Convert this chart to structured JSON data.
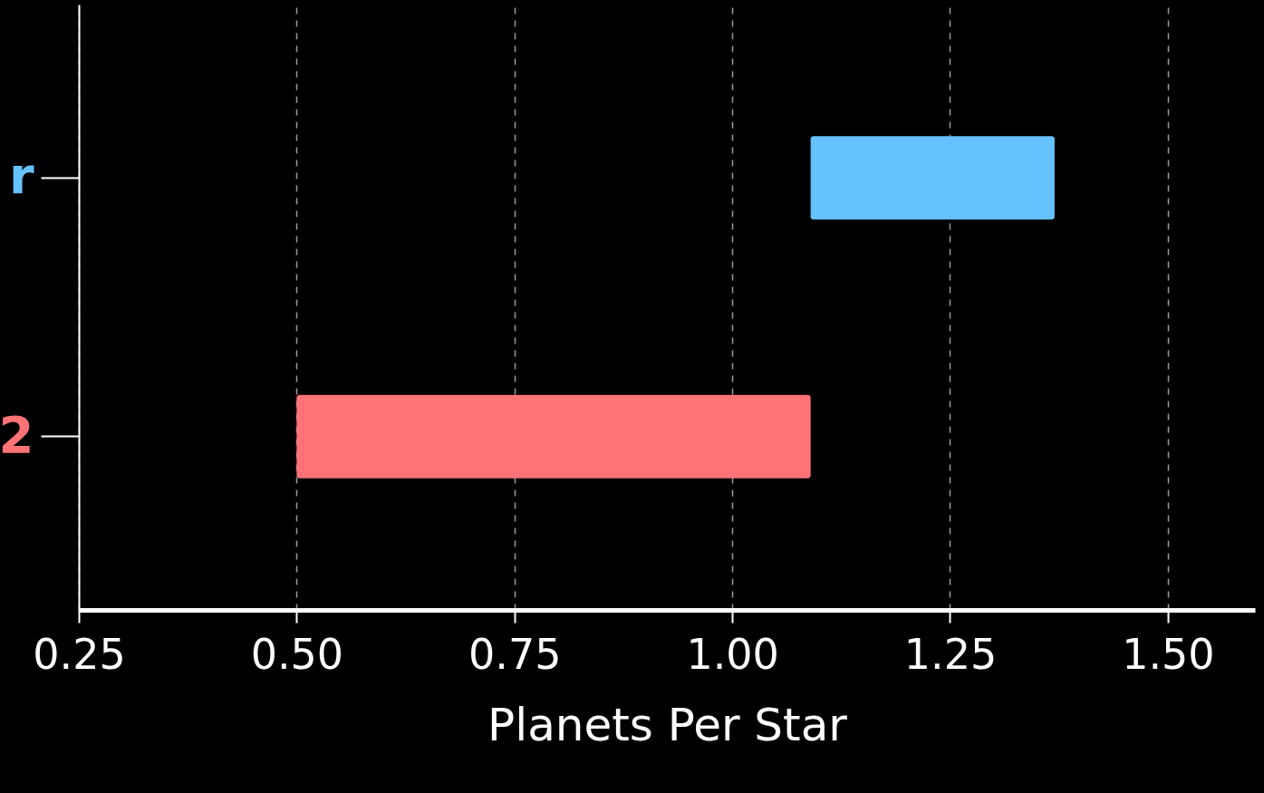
{
  "chart_data": {
    "type": "bar",
    "orientation": "horizontal",
    "xlabel": "Planets Per Star",
    "categories": [
      "r",
      "2"
    ],
    "base": [
      1.09,
      0.5
    ],
    "values": [
      0.28,
      0.59
    ],
    "colors": [
      "#66c2ff",
      "#ff7377"
    ],
    "xlim": [
      0.25,
      1.6
    ],
    "xticks": [
      0.25,
      {
        "value": 0.5,
        "label": "0.50"
      },
      0.75,
      {
        "value": 1.0,
        "label": "1.00"
      },
      1.25,
      {
        "value": 1.5,
        "label": "1.50"
      }
    ],
    "grid": "x"
  }
}
